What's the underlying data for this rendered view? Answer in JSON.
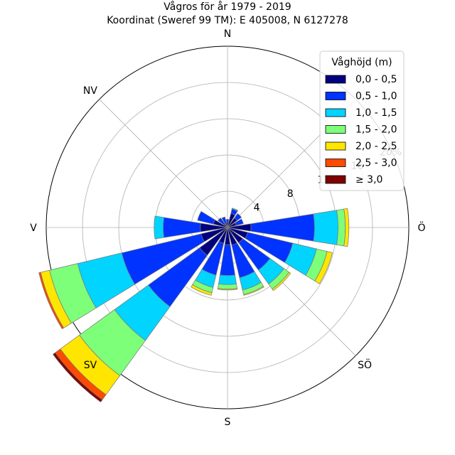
{
  "chart_data": {
    "type": "windrose",
    "title": "Vågros för år 1979 - 2019",
    "subtitle": "Koordinat (Sweref 99 TM): E 405008, N 6127278",
    "directions": [
      "N",
      "NNÖ",
      "NÖ",
      "ÖNÖ",
      "Ö",
      "ÖSÖ",
      "SÖ",
      "SSÖ",
      "S",
      "SSV",
      "SV",
      "VSV",
      "V",
      "VNV",
      "NV",
      "NNV"
    ],
    "compass_labels": [
      "N",
      "Ö",
      "S",
      "V",
      "NV",
      "SV",
      "SÖ"
    ],
    "radial_ticks": [
      "4",
      "8",
      "12",
      "16",
      "20%"
    ],
    "rmax": 20,
    "legend_title": "Våghöjd (m)",
    "legend_placement": "top-right",
    "grid": true,
    "series": [
      {
        "name": "0,0 - 0,5",
        "color": "#00007f",
        "values": [
          0.6,
          1.6,
          1.3,
          1.0,
          2.6,
          2.3,
          2.1,
          2.0,
          1.9,
          1.8,
          3.8,
          3.0,
          3.0,
          1.6,
          0.5,
          0.4
        ]
      },
      {
        "name": "0,5 - 1,0",
        "color": "#0033ff",
        "values": [
          0.3,
          0.5,
          0.6,
          0.8,
          7.0,
          5.1,
          3.7,
          3.7,
          3.4,
          3.6,
          7.0,
          9.0,
          4.1,
          1.8,
          0.8,
          0.8
        ]
      },
      {
        "name": "1,0 - 1,5",
        "color": "#00d4ff",
        "values": [
          0.0,
          0.1,
          0.0,
          0.0,
          2.6,
          2.7,
          1.9,
          1.4,
          1.0,
          1.4,
          4.6,
          5.0,
          1.0,
          0.0,
          0.0,
          0.0
        ]
      },
      {
        "name": "1,5 - 2,0",
        "color": "#7dff7a",
        "values": [
          0.0,
          0.0,
          0.0,
          0.0,
          0.8,
          1.2,
          0.7,
          0.5,
          0.5,
          0.6,
          4.8,
          3.2,
          0.0,
          0.0,
          0.0,
          0.0
        ]
      },
      {
        "name": "2,0 - 2,5",
        "color": "#ffe600",
        "values": [
          0.0,
          0.0,
          0.0,
          0.0,
          0.4,
          0.6,
          0.2,
          0.1,
          0.1,
          0.3,
          2.6,
          1.0,
          0.0,
          0.0,
          0.0,
          0.0
        ]
      },
      {
        "name": "2,5 - 3,0",
        "color": "#ff4a00",
        "values": [
          0.0,
          0.0,
          0.0,
          0.0,
          0.0,
          0.0,
          0.0,
          0.0,
          0.0,
          0.0,
          0.7,
          0.2,
          0.0,
          0.0,
          0.0,
          0.0
        ]
      },
      {
        "name": "≥ 3,0",
        "color": "#7f0000",
        "values": [
          0.0,
          0.0,
          0.0,
          0.0,
          0.0,
          0.0,
          0.0,
          0.0,
          0.0,
          0.0,
          0.3,
          0.0,
          0.0,
          0.0,
          0.0,
          0.0
        ]
      }
    ]
  }
}
